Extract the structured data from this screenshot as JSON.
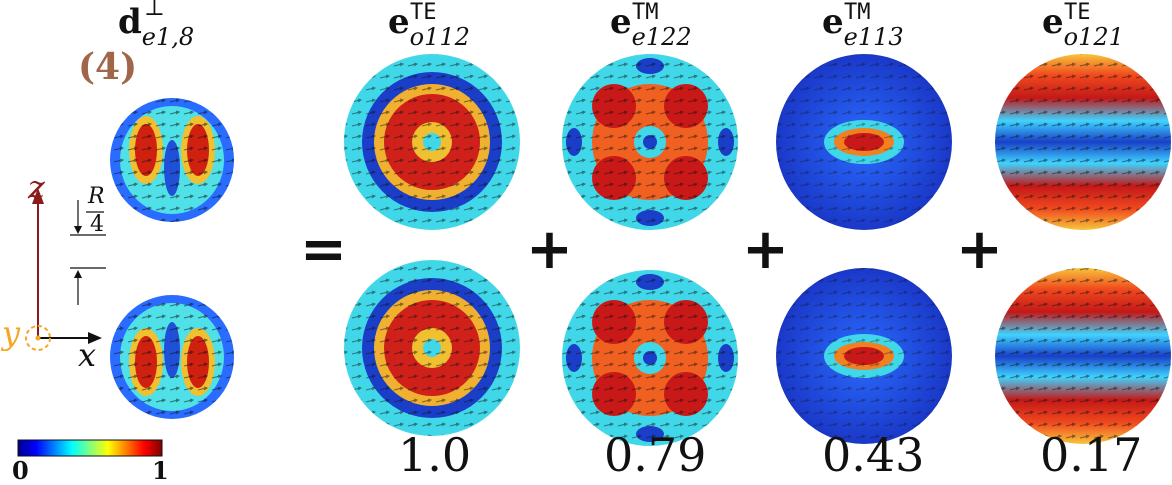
{
  "figure_label": "(4)",
  "equals": "=",
  "plus": "+",
  "columns": [
    {
      "base": "d",
      "sup": "⊥",
      "sub": "e1,8",
      "coefficient": ""
    },
    {
      "base": "e",
      "sup": "TE",
      "sub": "o112",
      "coefficient": "1.0"
    },
    {
      "base": "e",
      "sup": "TM",
      "sub": "e122",
      "coefficient": "0.79"
    },
    {
      "base": "e",
      "sup": "TM",
      "sub": "e113",
      "coefficient": "0.43"
    },
    {
      "base": "e",
      "sup": "TE",
      "sub": "o121",
      "coefficient": "0.17"
    }
  ],
  "axes": {
    "z": "z",
    "x": "x",
    "y": "y",
    "scale_num": "R",
    "scale_den": "4"
  },
  "colorbar": {
    "min": "0",
    "max": "1"
  },
  "colors": {
    "z_axis": "#8b1a1a",
    "y_axis": "#f5a623",
    "label4": "#a0664a",
    "outline_te_rim": "#f0c040"
  }
}
